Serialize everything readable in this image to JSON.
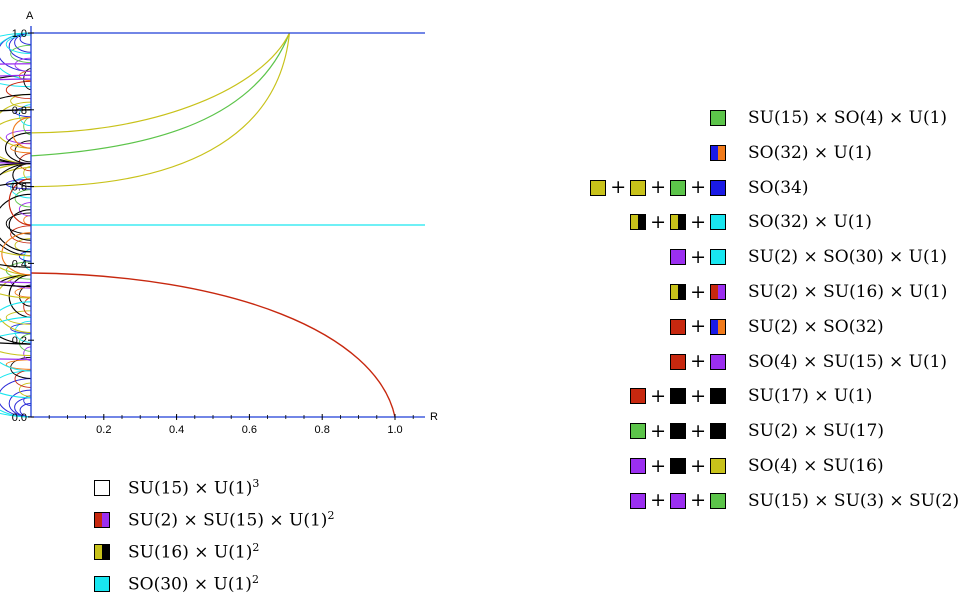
{
  "plot": {
    "x_axis_label": "R",
    "y_axis_label": "A",
    "x_ticks": [
      "0.2",
      "0.4",
      "0.6",
      "0.8",
      "1.0"
    ],
    "y_ticks": [
      "0.0",
      "0.2",
      "0.4",
      "0.6",
      "0.8",
      "1.0"
    ],
    "x_range": [
      0,
      1.08
    ],
    "y_range": [
      0,
      1.0
    ],
    "colors": {
      "axis": "#1f3fd6",
      "blue": "#2a2ad8",
      "cyan": "#19e6f0",
      "black": "#000000",
      "purple": "#9b2ff0",
      "yellow": "#c8c21a",
      "green": "#5cc44a",
      "red": "#c7280f",
      "orange": "#f07a1a"
    }
  },
  "legend_bottom": [
    {
      "swatch": [
        [
          "#ffffff"
        ]
      ],
      "label": "SU(15) × U(1)",
      "sup": "3"
    },
    {
      "swatch": [
        [
          "#c7280f",
          "#9b2ff0"
        ]
      ],
      "label": "SU(2) × SU(15) × U(1)",
      "sup": "2"
    },
    {
      "swatch": [
        [
          "#c8c21a",
          "#000000"
        ]
      ],
      "label": "SU(16) × U(1)",
      "sup": "2"
    },
    {
      "swatch": [
        [
          "#19e6f0"
        ]
      ],
      "label": "SO(30) × U(1)",
      "sup": "2"
    }
  ],
  "legend_right": [
    {
      "swatches": [
        [
          "#5cc44a"
        ]
      ],
      "label": "SU(15) × SO(4) × U(1)"
    },
    {
      "swatches": [
        [
          "#1a1ae6",
          "#f07a1a"
        ]
      ],
      "label": "SO(32) × U(1)"
    },
    {
      "swatches": [
        [
          "#c8c21a"
        ],
        [
          "#c8c21a"
        ],
        [
          "#5cc44a"
        ],
        [
          "#1a1ae6"
        ]
      ],
      "label": "SO(34)"
    },
    {
      "swatches": [
        [
          "#c8c21a",
          "#000000"
        ],
        [
          "#c8c21a",
          "#000000"
        ],
        [
          "#19e6f0"
        ]
      ],
      "label": "SO(32) × U(1)"
    },
    {
      "swatches": [
        [
          "#9b2ff0"
        ],
        [
          "#19e6f0"
        ]
      ],
      "label": "SU(2) × SO(30) × U(1)"
    },
    {
      "swatches": [
        [
          "#c8c21a",
          "#000000"
        ],
        [
          "#c7280f",
          "#9b2ff0"
        ]
      ],
      "label": "SU(2) × SU(16) × U(1)"
    },
    {
      "swatches": [
        [
          "#c7280f"
        ],
        [
          "#1a1ae6",
          "#f07a1a"
        ]
      ],
      "label": "SU(2) × SO(32)"
    },
    {
      "swatches": [
        [
          "#c7280f"
        ],
        [
          "#9b2ff0"
        ]
      ],
      "label": "SO(4) × SU(15) × U(1)"
    },
    {
      "swatches": [
        [
          "#c7280f"
        ],
        [
          "#000000"
        ],
        [
          "#000000"
        ]
      ],
      "label": "SU(17) × U(1)"
    },
    {
      "swatches": [
        [
          "#5cc44a"
        ],
        [
          "#000000"
        ],
        [
          "#000000"
        ]
      ],
      "label": "SU(2) × SU(17)"
    },
    {
      "swatches": [
        [
          "#9b2ff0"
        ],
        [
          "#000000"
        ],
        [
          "#c8c21a"
        ]
      ],
      "label": "SO(4) × SU(16)"
    },
    {
      "swatches": [
        [
          "#9b2ff0"
        ],
        [
          "#9b2ff0"
        ],
        [
          "#5cc44a"
        ]
      ],
      "label": "SU(15) × SU(3) × SU(2)"
    }
  ]
}
